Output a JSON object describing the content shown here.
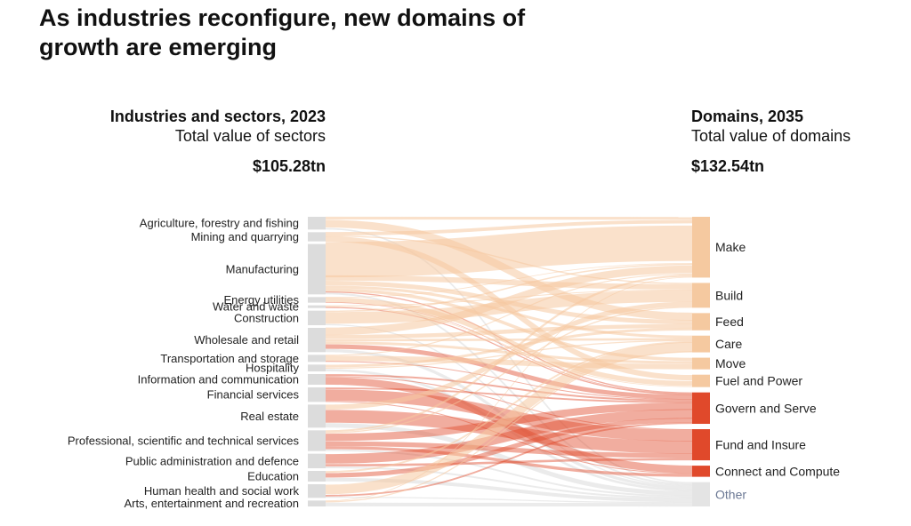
{
  "title": "As industries reconfigure, new domains of growth are emerging",
  "left_header": {
    "title": "Industries and sectors, 2023",
    "subtitle": "Total value of sectors",
    "total": "$105.28tn"
  },
  "right_header": {
    "title": "Domains, 2035",
    "subtitle": "Total value of domains",
    "total": "$132.54tn"
  },
  "colors": {
    "source_node": "#dcdcdc",
    "make_group": "#f5c9a0",
    "govern_group": "#e0492b",
    "other": "#e4e4e4"
  },
  "chart_data": {
    "type": "sankey",
    "sources": [
      {
        "name": "Agriculture, forestry and fishing",
        "value": 4.3
      },
      {
        "name": "Mining and quarrying",
        "value": 3.1
      },
      {
        "name": "Manufacturing",
        "value": 17.0
      },
      {
        "name": "Energy utilities",
        "value": 1.9
      },
      {
        "name": "Water and waste",
        "value": 0.9
      },
      {
        "name": "Construction",
        "value": 4.9
      },
      {
        "name": "Wholesale and retail",
        "value": 8.2
      },
      {
        "name": "Transportation and storage",
        "value": 2.4
      },
      {
        "name": "Hospitality",
        "value": 2.3
      },
      {
        "name": "Information and communication",
        "value": 3.6
      },
      {
        "name": "Financial services",
        "value": 4.9
      },
      {
        "name": "Real estate",
        "value": 7.8
      },
      {
        "name": "Professional, scientific and technical services",
        "value": 7.0
      },
      {
        "name": "Public administration and defence",
        "value": 4.9
      },
      {
        "name": "Education",
        "value": 3.6
      },
      {
        "name": "Human health and social work",
        "value": 4.6
      },
      {
        "name": "Arts, entertainment and recreation",
        "value": 2.0
      }
    ],
    "targets": [
      {
        "name": "Make",
        "value": 24.0,
        "color": "#f5c9a0"
      },
      {
        "name": "Build",
        "value": 9.8,
        "color": "#f5c9a0"
      },
      {
        "name": "Feed",
        "value": 6.8,
        "color": "#f5c9a0"
      },
      {
        "name": "Care",
        "value": 6.6,
        "color": "#f5c9a0"
      },
      {
        "name": "Move",
        "value": 4.6,
        "color": "#f5c9a0"
      },
      {
        "name": "Fuel and Power",
        "value": 4.9,
        "color": "#f5c9a0"
      },
      {
        "name": "Govern and Serve",
        "value": 12.4,
        "color": "#e0492b"
      },
      {
        "name": "Fund and Insure",
        "value": 12.3,
        "color": "#e0492b"
      },
      {
        "name": "Connect and Compute",
        "value": 4.4,
        "color": "#e0492b"
      },
      {
        "name": "Other",
        "value": 9.6,
        "color": "#e4e4e4"
      }
    ],
    "flows": [
      [
        "Agriculture, forestry and fishing",
        "Make",
        0.8
      ],
      [
        "Agriculture, forestry and fishing",
        "Feed",
        2.6
      ],
      [
        "Agriculture, forestry and fishing",
        "Other",
        0.5
      ],
      [
        "Mining and quarrying",
        "Make",
        1.0
      ],
      [
        "Mining and quarrying",
        "Fuel and Power",
        1.5
      ],
      [
        "Mining and quarrying",
        "Build",
        0.4
      ],
      [
        "Manufacturing",
        "Make",
        10.5
      ],
      [
        "Manufacturing",
        "Build",
        1.8
      ],
      [
        "Manufacturing",
        "Feed",
        1.6
      ],
      [
        "Manufacturing",
        "Care",
        1.0
      ],
      [
        "Manufacturing",
        "Move",
        1.0
      ],
      [
        "Manufacturing",
        "Govern and Serve",
        0.4
      ],
      [
        "Manufacturing",
        "Other",
        0.6
      ],
      [
        "Energy utilities",
        "Fuel and Power",
        1.4
      ],
      [
        "Energy utilities",
        "Make",
        0.2
      ],
      [
        "Energy utilities",
        "Govern and Serve",
        0.2
      ],
      [
        "Water and waste",
        "Govern and Serve",
        0.4
      ],
      [
        "Water and waste",
        "Fuel and Power",
        0.2
      ],
      [
        "Water and waste",
        "Build",
        0.3
      ],
      [
        "Construction",
        "Build",
        3.8
      ],
      [
        "Construction",
        "Make",
        0.4
      ],
      [
        "Construction",
        "Other",
        0.4
      ],
      [
        "Wholesale and retail",
        "Make",
        2.2
      ],
      [
        "Wholesale and retail",
        "Feed",
        1.4
      ],
      [
        "Wholesale and retail",
        "Care",
        0.8
      ],
      [
        "Wholesale and retail",
        "Move",
        0.8
      ],
      [
        "Wholesale and retail",
        "Govern and Serve",
        1.6
      ],
      [
        "Wholesale and retail",
        "Other",
        1.0
      ],
      [
        "Transportation and storage",
        "Move",
        1.6
      ],
      [
        "Transportation and storage",
        "Make",
        0.3
      ],
      [
        "Transportation and storage",
        "Govern and Serve",
        0.3
      ],
      [
        "Hospitality",
        "Feed",
        0.9
      ],
      [
        "Hospitality",
        "Care",
        0.4
      ],
      [
        "Hospitality",
        "Other",
        0.8
      ],
      [
        "Information and communication",
        "Connect and Compute",
        2.4
      ],
      [
        "Information and communication",
        "Govern and Serve",
        0.6
      ],
      [
        "Information and communication",
        "Fund and Insure",
        0.3
      ],
      [
        "Financial services",
        "Fund and Insure",
        3.8
      ],
      [
        "Financial services",
        "Govern and Serve",
        0.6
      ],
      [
        "Financial services",
        "Connect and Compute",
        0.3
      ],
      [
        "Real estate",
        "Fund and Insure",
        4.2
      ],
      [
        "Real estate",
        "Build",
        1.6
      ],
      [
        "Real estate",
        "Other",
        1.5
      ],
      [
        "Professional, scientific and technical services",
        "Govern and Serve",
        2.6
      ],
      [
        "Professional, scientific and technical services",
        "Fund and Insure",
        1.6
      ],
      [
        "Professional, scientific and technical services",
        "Connect and Compute",
        1.0
      ],
      [
        "Professional, scientific and technical services",
        "Make",
        0.6
      ],
      [
        "Professional, scientific and technical services",
        "Build",
        0.4
      ],
      [
        "Professional, scientific and technical services",
        "Other",
        0.6
      ],
      [
        "Public administration and defence",
        "Govern and Serve",
        3.4
      ],
      [
        "Public administration and defence",
        "Fund and Insure",
        0.8
      ],
      [
        "Public administration and defence",
        "Other",
        0.6
      ],
      [
        "Education",
        "Govern and Serve",
        1.6
      ],
      [
        "Education",
        "Care",
        0.6
      ],
      [
        "Education",
        "Other",
        1.2
      ],
      [
        "Human health and social work",
        "Care",
        3.4
      ],
      [
        "Human health and social work",
        "Govern and Serve",
        0.6
      ],
      [
        "Human health and social work",
        "Other",
        0.4
      ],
      [
        "Arts, entertainment and recreation",
        "Other",
        1.2
      ],
      [
        "Arts, entertainment and recreation",
        "Care",
        0.4
      ],
      [
        "Arts, entertainment and recreation",
        "Make",
        0.2
      ]
    ]
  }
}
